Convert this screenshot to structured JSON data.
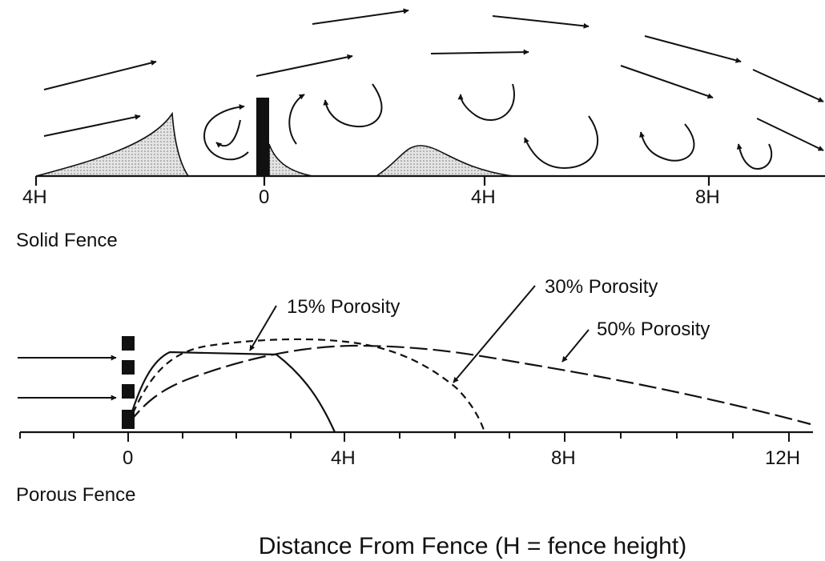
{
  "solid": {
    "ticks": [
      "4H",
      "0",
      "4H",
      "8H"
    ],
    "label": "Solid Fence"
  },
  "porous": {
    "ticks": [
      "0",
      "4H",
      "8H",
      "12H"
    ],
    "label": "Porous Fence",
    "annotations": [
      "15% Porosity",
      "30% Porosity",
      "50% Porosity"
    ]
  },
  "caption": "Distance From Fence (H = fence height)"
}
